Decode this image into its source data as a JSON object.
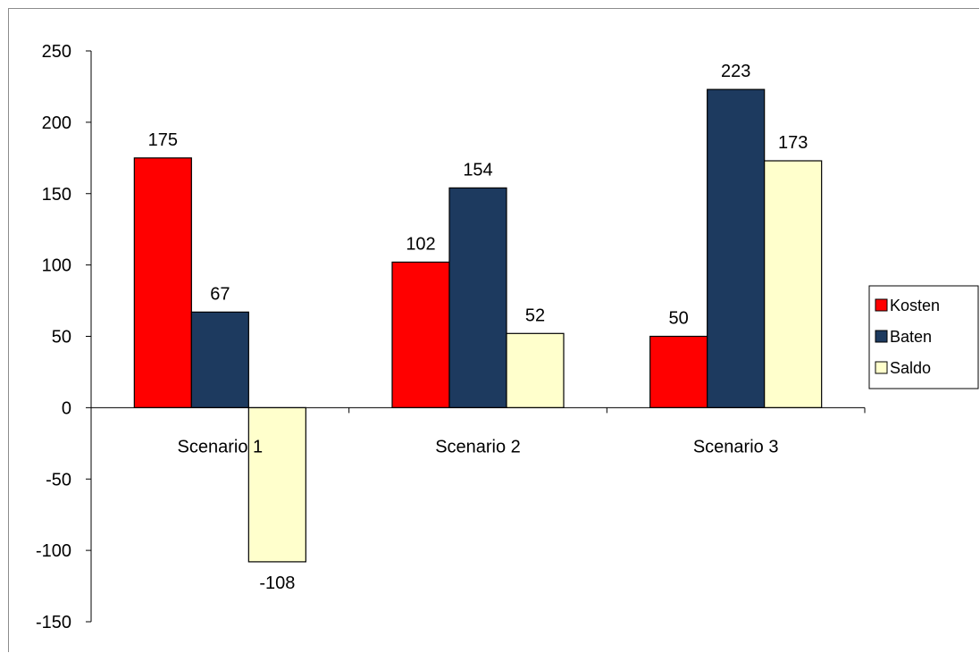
{
  "chart_data": {
    "type": "bar",
    "title": "",
    "xlabel": "",
    "ylabel": "",
    "categories": [
      "Scenario 1",
      "Scenario 2",
      "Scenario 3"
    ],
    "series": [
      {
        "name": "Kosten",
        "values": [
          175,
          102,
          50
        ],
        "color": "#ff0000"
      },
      {
        "name": "Baten",
        "values": [
          67,
          154,
          223
        ],
        "color": "#1d3a5f"
      },
      {
        "name": "Saldo",
        "values": [
          -108,
          52,
          173
        ],
        "color": "#ffffcc"
      }
    ],
    "ylim": [
      -150,
      250
    ],
    "yticks": [
      250,
      200,
      150,
      100,
      50,
      0,
      -50,
      -100,
      -150
    ],
    "grid": false,
    "legend": "right",
    "data_labels": true
  }
}
